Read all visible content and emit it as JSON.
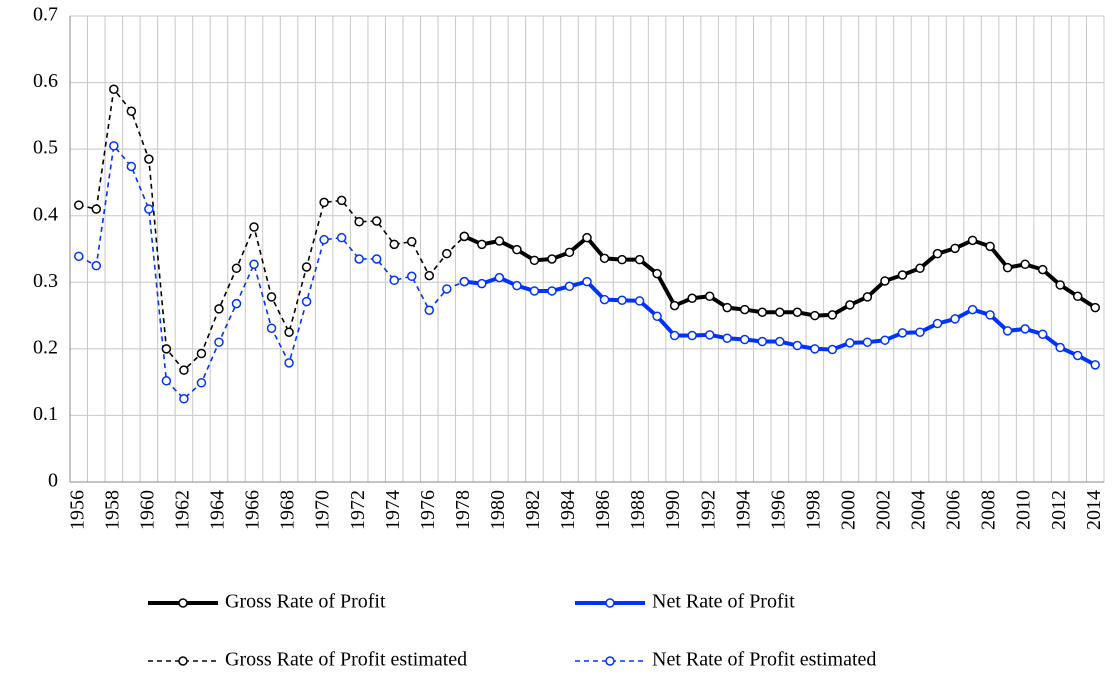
{
  "chart_data": {
    "type": "line",
    "categories": [
      "1956",
      null,
      "1958",
      null,
      "1960",
      null,
      "1962",
      null,
      "1964",
      null,
      "1966",
      null,
      "1968",
      null,
      "1970",
      null,
      "1972",
      null,
      "1974",
      null,
      "1976",
      null,
      "1978",
      null,
      "1980",
      null,
      "1982",
      null,
      "1984",
      null,
      "1986",
      null,
      "1988",
      null,
      "1990",
      null,
      "1992",
      null,
      "1994",
      null,
      "1996",
      null,
      "1998",
      null,
      "2000",
      null,
      "2002",
      null,
      "2004",
      null,
      "2006",
      null,
      "2008",
      null,
      "2010",
      null,
      "2012",
      null,
      "2014"
    ],
    "series": [
      {
        "name": "Gross Rate of Profit",
        "color": "#000000",
        "line_style": "solid",
        "values": [
          null,
          null,
          null,
          null,
          null,
          null,
          null,
          null,
          null,
          null,
          null,
          null,
          null,
          null,
          null,
          null,
          null,
          null,
          null,
          null,
          null,
          null,
          0.369,
          0.357,
          0.362,
          0.349,
          0.333,
          0.335,
          0.345,
          0.367,
          0.336,
          0.334,
          0.334,
          0.313,
          0.265,
          0.276,
          0.279,
          0.262,
          0.259,
          0.255,
          0.255,
          0.255,
          0.25,
          0.251,
          0.266,
          0.278,
          0.302,
          0.311,
          0.321,
          0.343,
          0.351,
          0.363,
          0.354,
          0.322,
          0.327,
          0.319,
          0.296,
          0.279,
          0.262
        ]
      },
      {
        "name": "Net Rate of Profit",
        "color": "#0033ff",
        "line_style": "solid",
        "values": [
          null,
          null,
          null,
          null,
          null,
          null,
          null,
          null,
          null,
          null,
          null,
          null,
          null,
          null,
          null,
          null,
          null,
          null,
          null,
          null,
          null,
          null,
          0.301,
          0.298,
          0.307,
          0.295,
          0.287,
          0.287,
          0.294,
          0.301,
          0.274,
          0.273,
          0.272,
          0.249,
          0.22,
          0.22,
          0.221,
          0.216,
          0.214,
          0.211,
          0.211,
          0.205,
          0.2,
          0.199,
          0.209,
          0.21,
          0.213,
          0.224,
          0.225,
          0.238,
          0.245,
          0.259,
          0.251,
          0.227,
          0.23,
          0.222,
          0.202,
          0.19,
          0.176
        ]
      },
      {
        "name": "Gross Rate of Profit estimated",
        "color": "#000000",
        "line_style": "dashed",
        "values": [
          0.416,
          0.41,
          0.59,
          0.557,
          0.485,
          0.2,
          0.168,
          0.193,
          0.26,
          0.321,
          0.383,
          0.278,
          0.225,
          0.323,
          0.42,
          0.423,
          0.391,
          0.392,
          0.357,
          0.361,
          0.31,
          0.343,
          0.369,
          null,
          null,
          null,
          null,
          null,
          null,
          null,
          null,
          null,
          null,
          null,
          null,
          null,
          null,
          null,
          null,
          null,
          null,
          null,
          null,
          null,
          null,
          null,
          null,
          null,
          null,
          null,
          null,
          null,
          null,
          null,
          null,
          null,
          null,
          null,
          null
        ]
      },
      {
        "name": "Net Rate of Profit estimated",
        "color": "#0033ff",
        "line_style": "dashed",
        "values": [
          0.339,
          0.325,
          0.505,
          0.474,
          0.41,
          0.152,
          0.125,
          0.149,
          0.21,
          0.268,
          0.327,
          0.231,
          0.179,
          0.271,
          0.364,
          0.367,
          0.335,
          0.335,
          0.303,
          0.309,
          0.258,
          0.29,
          0.301,
          null,
          null,
          null,
          null,
          null,
          null,
          null,
          null,
          null,
          null,
          null,
          null,
          null,
          null,
          null,
          null,
          null,
          null,
          null,
          null,
          null,
          null,
          null,
          null,
          null,
          null,
          null,
          null,
          null,
          null,
          null,
          null,
          null,
          null,
          null,
          null
        ]
      }
    ],
    "ylim": [
      0,
      0.7
    ],
    "yticks": [
      0,
      0.1,
      0.2,
      0.3,
      0.4,
      0.5,
      0.6,
      0.7
    ],
    "grid": true,
    "legend": "bottom"
  }
}
